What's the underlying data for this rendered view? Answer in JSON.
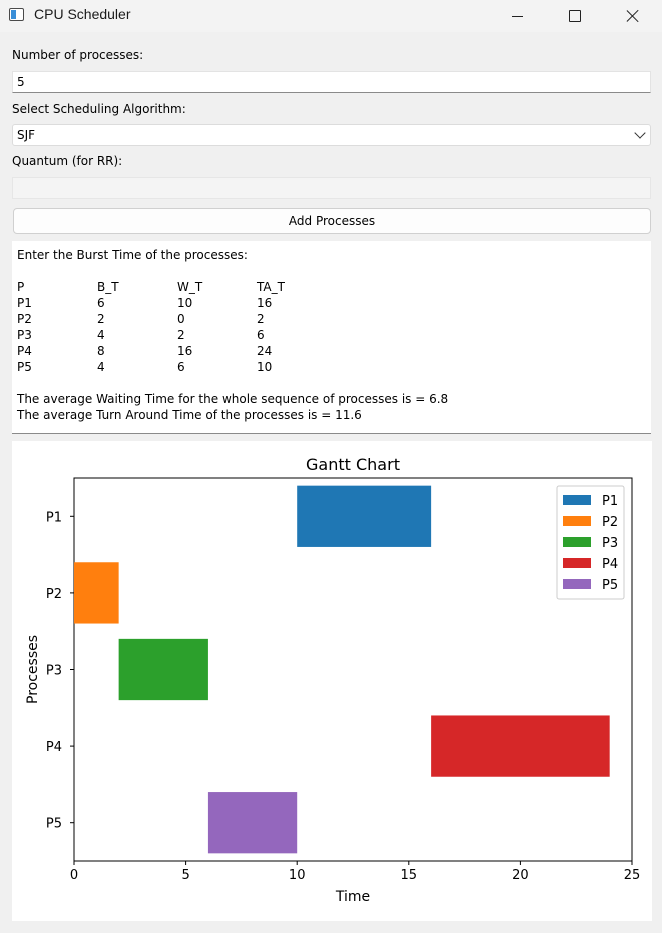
{
  "window": {
    "title": "CPU Scheduler",
    "icon": "app-window-icon"
  },
  "form": {
    "num_processes_label": "Number of processes:",
    "num_processes_value": "5",
    "algorithm_label": "Select Scheduling Algorithm:",
    "algorithm_value": "SJF",
    "quantum_label": "Quantum (for RR):",
    "quantum_value": "",
    "add_button_label": "Add Processes"
  },
  "output": {
    "prompt": "Enter the Burst Time of the processes:",
    "headers": [
      "P",
      "B_T",
      "W_T",
      "TA_T"
    ],
    "rows": [
      [
        "P1",
        "6",
        "10",
        "16"
      ],
      [
        "P2",
        "2",
        "0",
        "2"
      ],
      [
        "P3",
        "4",
        "2",
        "6"
      ],
      [
        "P4",
        "8",
        "16",
        "24"
      ],
      [
        "P5",
        "4",
        "6",
        "10"
      ]
    ],
    "avg_waiting": "The average Waiting Time for the whole sequence of processes is = 6.8",
    "avg_turnaround": "The average Turn Around Time of the processes is = 11.6"
  },
  "chart_data": {
    "type": "bar",
    "orientation": "horizontal-gantt",
    "title": "Gantt Chart",
    "xlabel": "Time",
    "ylabel": "Processes",
    "xlim": [
      0,
      25
    ],
    "xticks": [
      0,
      5,
      10,
      15,
      20,
      25
    ],
    "categories": [
      "P1",
      "P2",
      "P3",
      "P4",
      "P5"
    ],
    "series": [
      {
        "name": "P1",
        "start": 10,
        "duration": 6,
        "color": "#1f77b4"
      },
      {
        "name": "P2",
        "start": 0,
        "duration": 2,
        "color": "#ff7f0e"
      },
      {
        "name": "P3",
        "start": 2,
        "duration": 4,
        "color": "#2ca02c"
      },
      {
        "name": "P4",
        "start": 16,
        "duration": 8,
        "color": "#d62728"
      },
      {
        "name": "P5",
        "start": 6,
        "duration": 4,
        "color": "#9467bd"
      }
    ],
    "legend_position": "top-right",
    "grid": false
  }
}
